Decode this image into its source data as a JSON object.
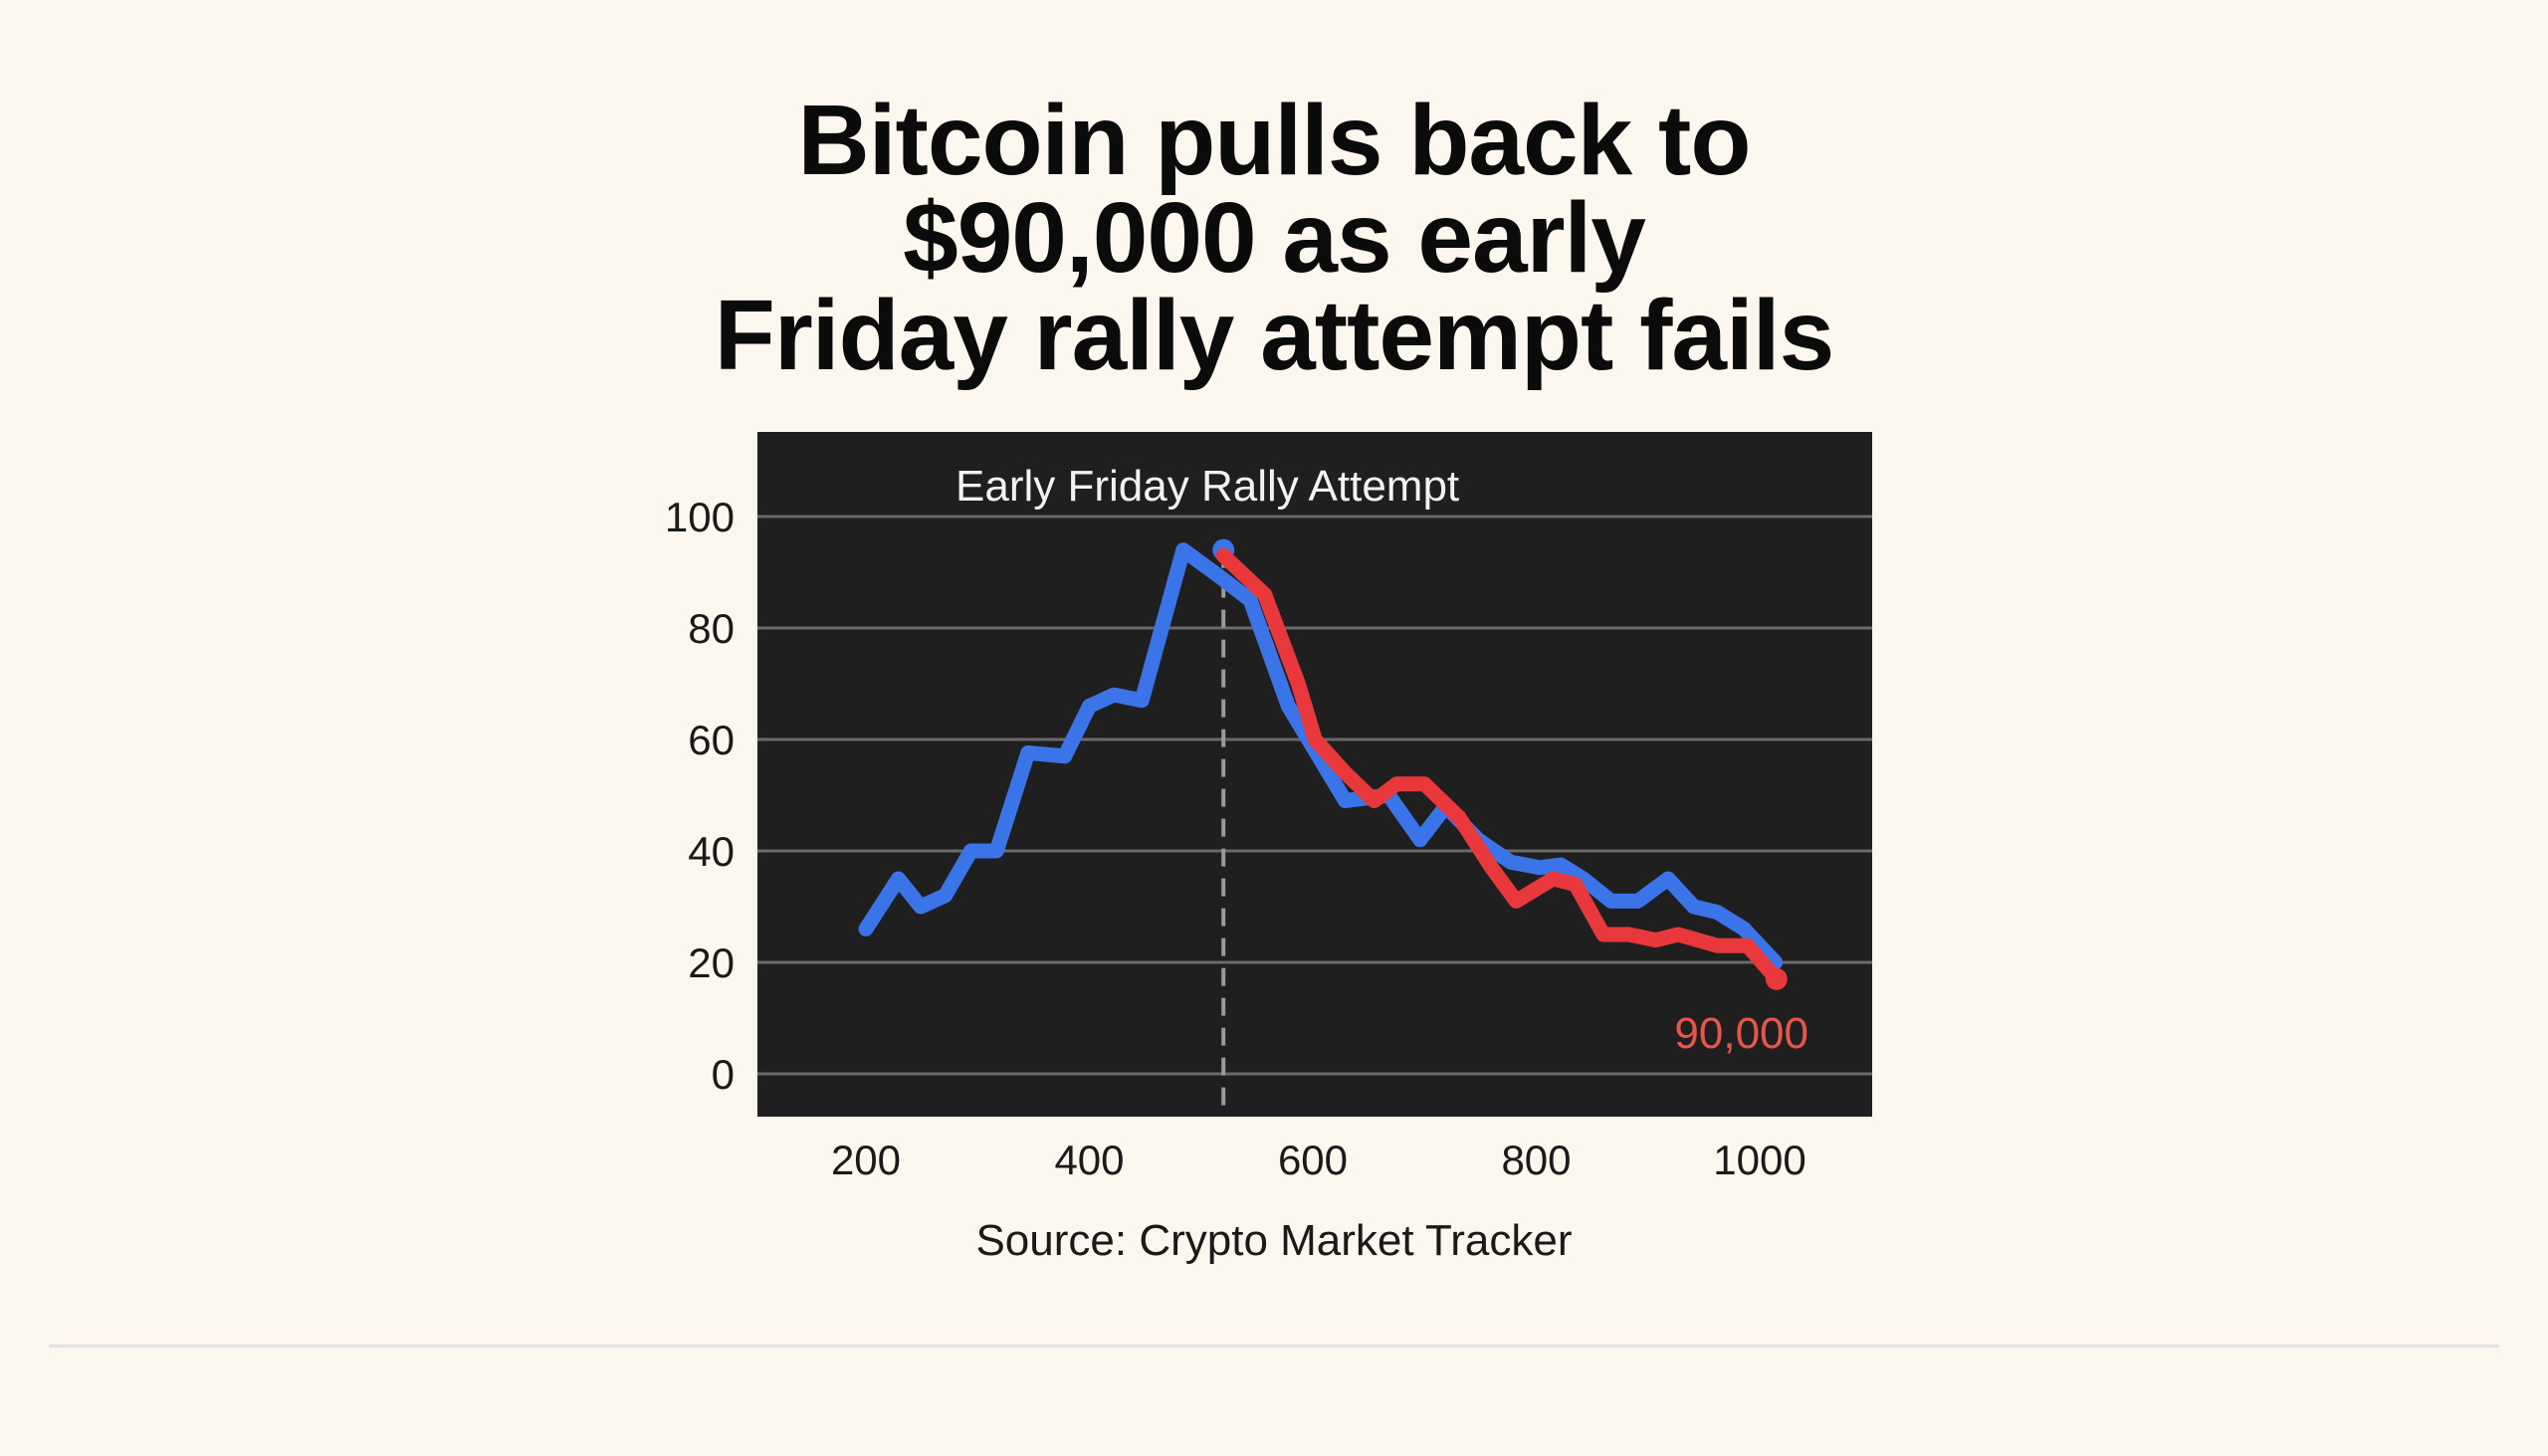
{
  "headline": {
    "lines": [
      "Bitcoin pulls back to",
      "$90,000 as early",
      "Friday rally attempt fails"
    ]
  },
  "source": "Source: Crypto Market Tracker",
  "chart_data": {
    "type": "line",
    "title": "",
    "xlabel": "",
    "ylabel": "",
    "xlim": [
      150,
      1100
    ],
    "ylim": [
      -8,
      115
    ],
    "x_ticks": [
      200,
      400,
      600,
      800,
      1000
    ],
    "x_tick_labels": [
      "200",
      "400",
      "600",
      "800",
      "1000"
    ],
    "y_ticks": [
      0,
      20,
      40,
      60,
      80,
      100
    ],
    "y_tick_labels": [
      "0",
      "20",
      "40",
      "60",
      "80",
      "100"
    ],
    "grid": "horizontal",
    "background": "#1f1f1f",
    "annotation": {
      "text": "Early Friday Rally Attempt",
      "x": 520
    },
    "end_label": {
      "text": "90,000",
      "color": "#e8564b"
    },
    "series": [
      {
        "color": "#3b73e8",
        "x": [
          200,
          229,
          249,
          271,
          294,
          317,
          345,
          378,
          400,
          422,
          447,
          484,
          518,
          544,
          578,
          629,
          668,
          696,
          719,
          748,
          777,
          803,
          822,
          842,
          867,
          891,
          918,
          941,
          962,
          986,
          1014
        ],
        "y": [
          26,
          35,
          30,
          32,
          40,
          40,
          57.6,
          57,
          66,
          68,
          67,
          94,
          89,
          85,
          66,
          49,
          50,
          42,
          48,
          42,
          38,
          37,
          37.5,
          35,
          31,
          31,
          35,
          30,
          29,
          26,
          20
        ],
        "marker": {
          "x": 520,
          "y": 94
        }
      },
      {
        "color": "#e8383b",
        "x": [
          520,
          557,
          587,
          602,
          629,
          655,
          675,
          700,
          731,
          760,
          782,
          815,
          835,
          860,
          883,
          907,
          927,
          962,
          989,
          1015
        ],
        "y": [
          93,
          86,
          70,
          60,
          54,
          49,
          52,
          52,
          46,
          37,
          31,
          35,
          34,
          25,
          25,
          24,
          25,
          23,
          23,
          17
        ],
        "marker": {
          "x": 1015,
          "y": 17
        }
      }
    ]
  }
}
